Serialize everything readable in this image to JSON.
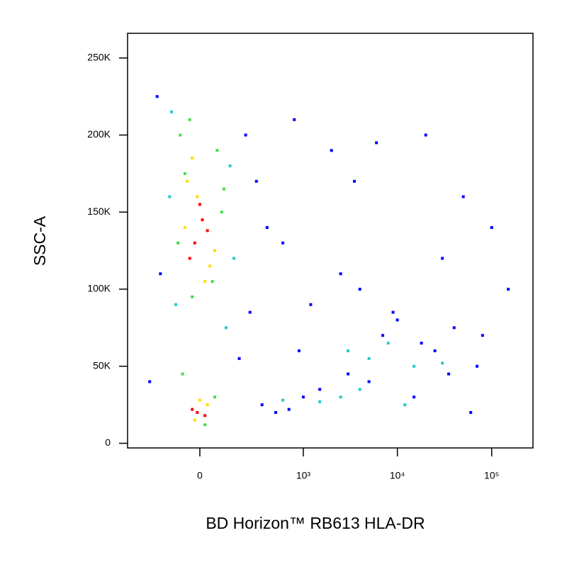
{
  "chart_data": {
    "type": "scatter",
    "x_label": "BD Horizon™ RB613 HLA-DR",
    "y_label": "SSC-A",
    "xscale": "asinh",
    "xscale_width": 161,
    "xlim": [
      -456,
      274000
    ],
    "ylim": [
      -3000,
      266000
    ],
    "xticks": [
      0,
      {
        "value": 1000,
        "label": "10³"
      },
      {
        "value": 10000,
        "label": "10⁴"
      },
      {
        "value": 100000,
        "label": "10⁵"
      }
    ],
    "yticks": [
      0,
      {
        "value": 50000,
        "label": "50K"
      },
      {
        "value": 100000,
        "label": "100K"
      },
      {
        "value": 150000,
        "label": "150K"
      },
      {
        "value": 200000,
        "label": "200K"
      },
      {
        "value": 250000,
        "label": "250K"
      }
    ],
    "series": [
      {
        "color": "#0000ff",
        "x": [
          -200,
          220,
          -180,
          250,
          300,
          400,
          800,
          2000,
          6000,
          20000,
          50000,
          100000,
          -250,
          180,
          350,
          500,
          700,
          1000,
          1500,
          3000,
          5000,
          7000,
          10000,
          15000,
          25000,
          40000,
          60000,
          80000,
          1200,
          2500,
          4000,
          9000,
          18000,
          35000,
          70000,
          150000,
          600,
          900,
          3500,
          30000
        ],
        "values": [
          225000,
          200000,
          110000,
          85000,
          170000,
          140000,
          210000,
          190000,
          195000,
          200000,
          160000,
          140000,
          40000,
          55000,
          25000,
          20000,
          22000,
          30000,
          35000,
          45000,
          40000,
          70000,
          80000,
          30000,
          60000,
          75000,
          20000,
          70000,
          90000,
          110000,
          100000,
          85000,
          65000,
          45000,
          50000,
          100000,
          130000,
          60000,
          170000,
          120000
        ]
      },
      {
        "color": "#22cccc",
        "x": [
          -120,
          130,
          -100,
          150,
          -130,
          110,
          3000,
          5000,
          8000,
          15000,
          30000,
          4000,
          600,
          1500,
          2500,
          12000
        ],
        "values": [
          215000,
          180000,
          90000,
          120000,
          160000,
          75000,
          60000,
          55000,
          65000,
          50000,
          52000,
          35000,
          28000,
          27000,
          30000,
          25000
        ]
      },
      {
        "color": "#44dd44",
        "x": [
          -80,
          70,
          -60,
          90,
          -30,
          50,
          -90,
          100,
          -40,
          60,
          20,
          -70
        ],
        "values": [
          200000,
          190000,
          175000,
          150000,
          95000,
          105000,
          130000,
          165000,
          210000,
          30000,
          12000,
          45000
        ]
      },
      {
        "color": "#ffdd00",
        "x": [
          -50,
          40,
          -10,
          60,
          -60,
          20,
          -30,
          30,
          -20,
          0
        ],
        "values": [
          170000,
          115000,
          160000,
          125000,
          140000,
          105000,
          185000,
          25000,
          15000,
          28000
        ]
      },
      {
        "color": "#ff0000",
        "x": [
          -20,
          10,
          -40,
          0,
          30,
          -10,
          -30,
          20
        ],
        "values": [
          130000,
          145000,
          120000,
          155000,
          138000,
          20000,
          22000,
          18000
        ]
      }
    ]
  }
}
